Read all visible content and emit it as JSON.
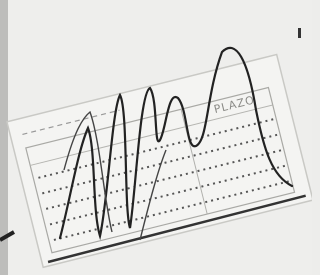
{
  "image": {
    "labels": [
      "PLAZO"
    ]
  }
}
